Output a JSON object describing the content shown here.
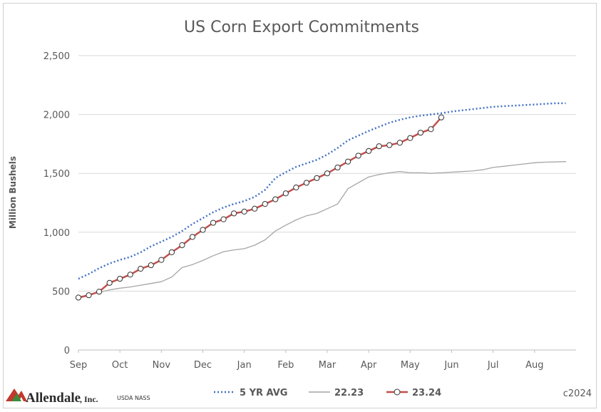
{
  "chart_data": {
    "type": "line",
    "title": "US Corn Export Commitments",
    "ylabel": "Million Bushels",
    "xlabel": "",
    "ylim": [
      0,
      2500
    ],
    "yticks": [
      0,
      500,
      1000,
      1500,
      2000,
      2500
    ],
    "ytick_labels": [
      "0",
      "500",
      "1,000",
      "1,500",
      "2,000",
      "2,500"
    ],
    "xlim": [
      0,
      12
    ],
    "months": [
      "Sep",
      "Oct",
      "Nov",
      "Dec",
      "Jan",
      "Feb",
      "Mar",
      "Apr",
      "May",
      "Jun",
      "Jul",
      "Aug"
    ],
    "grid": true,
    "legend_position": "bottom",
    "series": [
      {
        "name": "5 YR AVG",
        "style": "dotted",
        "color": "#4472c4",
        "x": [
          0,
          0.25,
          0.5,
          0.75,
          1.0,
          1.25,
          1.5,
          1.75,
          2.0,
          2.25,
          2.5,
          2.75,
          3.0,
          3.25,
          3.5,
          3.75,
          4.0,
          4.25,
          4.5,
          4.75,
          5.0,
          5.25,
          5.5,
          5.75,
          6.0,
          6.25,
          6.5,
          6.75,
          7.0,
          7.25,
          7.5,
          7.75,
          8.0,
          8.25,
          8.5,
          8.75,
          9.0,
          9.25,
          9.5,
          9.75,
          10.0,
          10.25,
          10.5,
          10.75,
          11.0,
          11.25,
          11.5,
          11.75
        ],
        "values": [
          605,
          645,
          695,
          735,
          765,
          790,
          830,
          880,
          920,
          960,
          1010,
          1070,
          1120,
          1170,
          1210,
          1240,
          1265,
          1300,
          1360,
          1460,
          1510,
          1555,
          1585,
          1615,
          1660,
          1715,
          1780,
          1820,
          1860,
          1895,
          1930,
          1955,
          1975,
          1990,
          2000,
          2010,
          2025,
          2035,
          2045,
          2055,
          2065,
          2070,
          2075,
          2080,
          2085,
          2090,
          2095,
          2095
        ]
      },
      {
        "name": "22.23",
        "style": "solid",
        "color": "#a6a6a6",
        "x": [
          0,
          0.25,
          0.5,
          0.75,
          1.0,
          1.25,
          1.5,
          1.75,
          2.0,
          2.25,
          2.5,
          2.75,
          3.0,
          3.25,
          3.5,
          3.75,
          4.0,
          4.25,
          4.5,
          4.75,
          5.0,
          5.25,
          5.5,
          5.75,
          6.0,
          6.25,
          6.5,
          6.75,
          7.0,
          7.25,
          7.5,
          7.75,
          8.0,
          8.25,
          8.5,
          8.75,
          9.0,
          9.25,
          9.5,
          9.75,
          10.0,
          10.25,
          10.5,
          10.75,
          11.0,
          11.25,
          11.5,
          11.75
        ],
        "values": [
          450,
          470,
          490,
          510,
          525,
          535,
          550,
          565,
          580,
          620,
          700,
          725,
          760,
          800,
          835,
          850,
          860,
          890,
          935,
          1010,
          1060,
          1105,
          1140,
          1160,
          1200,
          1240,
          1370,
          1420,
          1470,
          1490,
          1505,
          1515,
          1505,
          1505,
          1500,
          1505,
          1510,
          1515,
          1520,
          1530,
          1550,
          1560,
          1570,
          1580,
          1590,
          1595,
          1597,
          1600
        ]
      },
      {
        "name": "23.24",
        "style": "solid-marker",
        "color": "#c0504d",
        "x": [
          0,
          0.25,
          0.5,
          0.75,
          1.0,
          1.25,
          1.5,
          1.75,
          2.0,
          2.25,
          2.5,
          2.75,
          3.0,
          3.25,
          3.5,
          3.75,
          4.0,
          4.25,
          4.5,
          4.75,
          5.0,
          5.25,
          5.5,
          5.75,
          6.0,
          6.25,
          6.5,
          6.75,
          7.0,
          7.25,
          7.5,
          7.75,
          8.0,
          8.25,
          8.5,
          8.75
        ],
        "values": [
          445,
          465,
          495,
          570,
          605,
          640,
          690,
          720,
          765,
          830,
          890,
          960,
          1020,
          1080,
          1110,
          1160,
          1175,
          1200,
          1240,
          1280,
          1330,
          1380,
          1420,
          1460,
          1500,
          1550,
          1600,
          1650,
          1690,
          1730,
          1740,
          1760,
          1800,
          1845,
          1875,
          1975
        ]
      }
    ]
  },
  "legend": {
    "avg_label": "5 YR AVG",
    "prev_label": "22.23",
    "curr_label": "23.24"
  },
  "footer": {
    "logo_main": "Allendale",
    "logo_inc": ", Inc.",
    "source": "USDA NASS",
    "copyright": "c2024"
  },
  "colors": {
    "grid": "#d9d9d9",
    "axis": "#bfbfbf",
    "logo_red": "#c0392b",
    "logo_green": "#3c8a3c"
  }
}
